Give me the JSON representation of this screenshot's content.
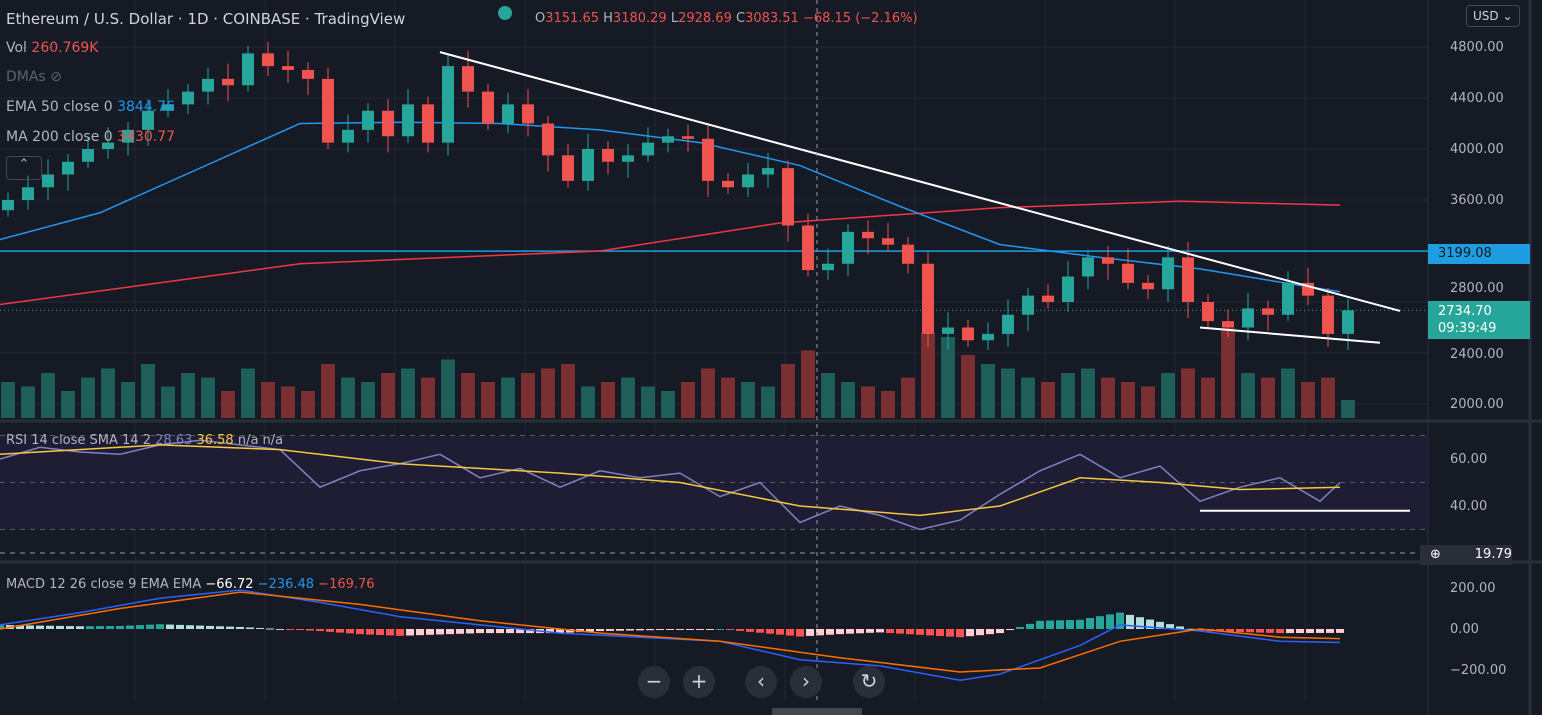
{
  "header": {
    "title": "Ethereum / U.S. Dollar · 1D · COINBASE · TradingView",
    "o_label": "O",
    "o": "3151.65",
    "h_label": "H",
    "h": "3180.29",
    "l_label": "L",
    "l": "2928.69",
    "c_label": "C",
    "c": "3083.51",
    "change": "−68.15 (−2.16%)",
    "currency": "USD"
  },
  "legend": {
    "vol_label": "Vol",
    "vol": "260.769K",
    "dmas": "DMAs",
    "ema_label": "EMA 50 close 0",
    "ema": "3844.76",
    "ma_label": "MA 200 close 0",
    "ma": "3430.77",
    "rsi_label": "RSI 14 close SMA 14 2",
    "rsi": "28.63",
    "rsi_sma": "36.58",
    "rsi_na": "n/a n/a",
    "macd_label": "MACD 12 26 close 9 EMA EMA",
    "macd_hist": "−66.72",
    "macd": "−236.48",
    "macd_signal": "−169.76"
  },
  "axis": {
    "price": [
      "4800.00",
      "4400.00",
      "4000.00",
      "3600.00",
      "2800.00",
      "2400.00",
      "2000.00"
    ],
    "rsi": [
      "60.00",
      "40.00"
    ],
    "rsi_cursor": "19.79",
    "macd": [
      "200.00",
      "0.00",
      "−200.00"
    ],
    "level_tag": "3199.08",
    "last_price": "2734.70",
    "countdown": "09:39:49"
  },
  "toolbar": {
    "zoom_out": "−",
    "zoom_in": "+",
    "scroll_left": "‹",
    "scroll_right": "›",
    "reset": "↻"
  },
  "colors": {
    "up": "#26a69a",
    "down": "#ef5350",
    "ema": "#2196f3",
    "ma": "#f23645",
    "rsi": "#7e82c2",
    "rsi_sma": "#f5c842",
    "level": "#1e9ee0"
  },
  "chart_data": {
    "type": "candlestick",
    "title": "Ethereum / U.S. Dollar 1D",
    "ylabel": "USD",
    "ylim": [
      1900,
      4900
    ],
    "closes": [
      3600,
      3700,
      3800,
      3900,
      4000,
      4050,
      4150,
      4300,
      4350,
      4450,
      4550,
      4500,
      4750,
      4650,
      4620,
      4550,
      4050,
      4150,
      4300,
      4100,
      4350,
      4050,
      4650,
      4450,
      4200,
      4350,
      4200,
      3950,
      3750,
      4000,
      3900,
      3950,
      4050,
      4100,
      4080,
      3750,
      3700,
      3800,
      3850,
      3400,
      3050,
      3100,
      3350,
      3300,
      3250,
      3100,
      2550,
      2600,
      2500,
      2550,
      2700,
      2850,
      2800,
      3000,
      3150,
      3100,
      2950,
      2900,
      3150,
      2800,
      2650,
      2600,
      2750,
      2700,
      2950,
      2850,
      2550,
      2735
    ],
    "volume_relative": [
      40,
      35,
      50,
      30,
      45,
      55,
      40,
      60,
      35,
      50,
      45,
      30,
      55,
      40,
      35,
      30,
      60,
      45,
      40,
      50,
      55,
      45,
      65,
      50,
      40,
      45,
      50,
      55,
      60,
      35,
      40,
      45,
      35,
      30,
      40,
      55,
      45,
      40,
      35,
      60,
      75,
      50,
      40,
      35,
      30,
      45,
      95,
      90,
      70,
      60,
      55,
      45,
      40,
      50,
      55,
      45,
      40,
      35,
      50,
      55,
      45,
      100,
      50,
      45,
      55,
      40,
      45,
      20
    ],
    "ema50": [
      [
        0,
        3290
      ],
      [
        10,
        3500
      ],
      [
        20,
        3850
      ],
      [
        30,
        4200
      ],
      [
        40,
        4210
      ],
      [
        50,
        4200
      ],
      [
        60,
        4150
      ],
      [
        70,
        4050
      ],
      [
        80,
        3870
      ],
      [
        90,
        3550
      ],
      [
        100,
        3250
      ],
      [
        110,
        3150
      ],
      [
        120,
        3060
      ],
      [
        130,
        2930
      ],
      [
        134,
        2880
      ]
    ],
    "ma200": [
      [
        0,
        2780
      ],
      [
        30,
        3100
      ],
      [
        60,
        3200
      ],
      [
        78,
        3420
      ],
      [
        100,
        3540
      ],
      [
        118,
        3590
      ],
      [
        134,
        3560
      ]
    ],
    "horizontal_level": 3199.08,
    "trendlines": [
      [
        [
          44,
          4760
        ],
        [
          140,
          2730
        ]
      ],
      [
        [
          120,
          2600
        ],
        [
          138,
          2480
        ]
      ]
    ],
    "rsi": {
      "ylim": [
        15,
        75
      ],
      "bands": [
        30,
        50,
        70
      ],
      "values": [
        [
          0,
          60
        ],
        [
          4,
          65
        ],
        [
          8,
          63
        ],
        [
          12,
          62
        ],
        [
          16,
          66
        ],
        [
          20,
          68
        ],
        [
          24,
          66
        ],
        [
          28,
          64
        ],
        [
          32,
          48
        ],
        [
          36,
          55
        ],
        [
          40,
          58
        ],
        [
          44,
          62
        ],
        [
          48,
          52
        ],
        [
          52,
          56
        ],
        [
          56,
          48
        ],
        [
          60,
          55
        ],
        [
          64,
          52
        ],
        [
          68,
          54
        ],
        [
          72,
          44
        ],
        [
          76,
          50
        ],
        [
          80,
          33
        ],
        [
          84,
          40
        ],
        [
          88,
          36
        ],
        [
          92,
          30
        ],
        [
          96,
          34
        ],
        [
          100,
          45
        ],
        [
          104,
          55
        ],
        [
          108,
          62
        ],
        [
          112,
          52
        ],
        [
          116,
          57
        ],
        [
          120,
          42
        ],
        [
          124,
          48
        ],
        [
          128,
          52
        ],
        [
          132,
          42
        ],
        [
          134,
          50
        ]
      ],
      "sma": [
        [
          0,
          62
        ],
        [
          16,
          66
        ],
        [
          28,
          64
        ],
        [
          40,
          58
        ],
        [
          56,
          54
        ],
        [
          68,
          50
        ],
        [
          80,
          40
        ],
        [
          92,
          36
        ],
        [
          100,
          40
        ],
        [
          108,
          52
        ],
        [
          116,
          50
        ],
        [
          124,
          47
        ],
        [
          134,
          48
        ]
      ],
      "support": [
        [
          120,
          38
        ],
        [
          141,
          38
        ]
      ]
    },
    "macd": {
      "ylim": [
        -320,
        260
      ],
      "macd": [
        [
          0,
          20
        ],
        [
          8,
          80
        ],
        [
          16,
          150
        ],
        [
          24,
          190
        ],
        [
          32,
          130
        ],
        [
          40,
          60
        ],
        [
          48,
          20
        ],
        [
          56,
          -20
        ],
        [
          64,
          -40
        ],
        [
          72,
          -60
        ],
        [
          80,
          -150
        ],
        [
          88,
          -180
        ],
        [
          96,
          -250
        ],
        [
          100,
          -220
        ],
        [
          108,
          -80
        ],
        [
          112,
          20
        ],
        [
          120,
          -10
        ],
        [
          128,
          -60
        ],
        [
          134,
          -66
        ]
      ],
      "signal": [
        [
          0,
          0
        ],
        [
          12,
          100
        ],
        [
          24,
          180
        ],
        [
          36,
          120
        ],
        [
          48,
          40
        ],
        [
          60,
          -20
        ],
        [
          72,
          -60
        ],
        [
          84,
          -140
        ],
        [
          96,
          -210
        ],
        [
          104,
          -190
        ],
        [
          112,
          -60
        ],
        [
          120,
          0
        ],
        [
          128,
          -40
        ],
        [
          134,
          -47
        ]
      ]
    }
  }
}
